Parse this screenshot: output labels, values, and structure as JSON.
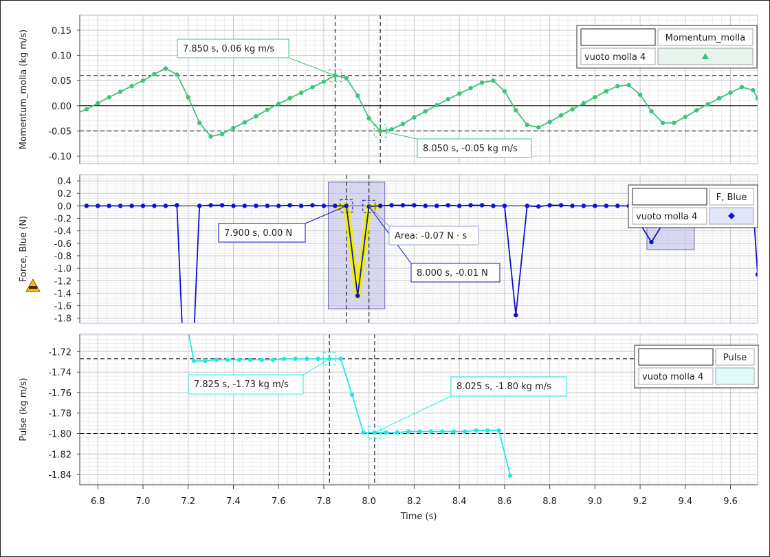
{
  "x_axis": {
    "label": "Time (s)",
    "range": [
      6.72,
      9.72
    ],
    "ticks": [
      "6.8",
      "7.0",
      "7.2",
      "7.4",
      "7.6",
      "7.8",
      "8.0",
      "8.2",
      "8.4",
      "8.6",
      "8.8",
      "9.0",
      "9.2",
      "9.4",
      "9.6"
    ],
    "tick_values": [
      6.8,
      7.0,
      7.2,
      7.4,
      7.6,
      7.8,
      8.0,
      8.2,
      8.4,
      8.6,
      8.8,
      9.0,
      9.2,
      9.4,
      9.6
    ]
  },
  "colors": {
    "momentum": "#3cc47c",
    "force": "#1010d0",
    "pulse": "#20e8e8",
    "highlight": "#f0f000",
    "selection_fill": "#b4b4e4",
    "warning": "#f0c000"
  },
  "chart_data": [
    {
      "type": "line",
      "ylabel": "Momentum_molla (kg m/s)",
      "ylim": [
        -0.115,
        0.18
      ],
      "yticks": [
        "0.15",
        "0.10",
        "0.05",
        "0.00",
        "-0.05",
        "-0.10"
      ],
      "ytick_values": [
        0.15,
        0.1,
        0.05,
        0.0,
        -0.05,
        -0.1
      ],
      "grid": true,
      "legend": {
        "placement": "top-right",
        "title_box": "",
        "series_label": "Momentum_molla",
        "run": "vuoto molla 4",
        "icon": "triangle-icon"
      },
      "series": [
        {
          "name": "Momentum_molla",
          "x": [
            6.7,
            6.75,
            6.8,
            6.85,
            6.9,
            6.95,
            7.0,
            7.05,
            7.1,
            7.15,
            7.2,
            7.25,
            7.3,
            7.35,
            7.4,
            7.45,
            7.5,
            7.55,
            7.6,
            7.65,
            7.7,
            7.75,
            7.8,
            7.85,
            7.9,
            7.95,
            8.0,
            8.05,
            8.1,
            8.15,
            8.2,
            8.25,
            8.3,
            8.35,
            8.4,
            8.45,
            8.5,
            8.55,
            8.6,
            8.65,
            8.7,
            8.75,
            8.8,
            8.85,
            8.9,
            8.95,
            9.0,
            9.05,
            9.1,
            9.15,
            9.2,
            9.25,
            9.3,
            9.35,
            9.4,
            9.45,
            9.5,
            9.55,
            9.6,
            9.65,
            9.7,
            9.72
          ],
          "y": [
            -0.016,
            -0.007,
            0.005,
            0.017,
            0.028,
            0.039,
            0.05,
            0.063,
            0.074,
            0.062,
            0.017,
            -0.034,
            -0.061,
            -0.056,
            -0.044,
            -0.033,
            -0.021,
            -0.008,
            0.004,
            0.015,
            0.026,
            0.037,
            0.048,
            0.06,
            0.055,
            0.02,
            -0.025,
            -0.05,
            -0.047,
            -0.036,
            -0.023,
            -0.011,
            0.001,
            0.013,
            0.024,
            0.035,
            0.046,
            0.05,
            0.029,
            -0.009,
            -0.038,
            -0.043,
            -0.032,
            -0.019,
            -0.007,
            0.005,
            0.017,
            0.029,
            0.039,
            0.041,
            0.022,
            -0.011,
            -0.034,
            -0.034,
            -0.022,
            -0.009,
            0.003,
            0.015,
            0.026,
            0.037,
            0.031,
            0.015
          ]
        }
      ],
      "cursors": [
        7.85,
        8.05
      ],
      "hlines": [
        0.06,
        -0.05
      ],
      "callouts": [
        {
          "text": "7.850 s, 0.06 kg m/s",
          "x": 7.85,
          "y": 0.06
        },
        {
          "text": "8.050 s, -0.05 kg m/s",
          "x": 8.05,
          "y": -0.05
        }
      ]
    },
    {
      "type": "line",
      "ylabel": "Force, Blue (N)",
      "ylim": [
        -1.88,
        0.5
      ],
      "yticks": [
        "0.4",
        "0.2",
        "0.0",
        "-0.2",
        "-0.4",
        "-0.6",
        "-0.8",
        "-1.0",
        "-1.2",
        "-1.4",
        "-1.6",
        "-1.8"
      ],
      "ytick_values": [
        0.4,
        0.2,
        0.0,
        -0.2,
        -0.4,
        -0.6,
        -0.8,
        -1.0,
        -1.2,
        -1.4,
        -1.6,
        -1.8
      ],
      "grid": true,
      "legend": {
        "placement": "top-right",
        "title_box": "",
        "series_label": "F, Blue",
        "run": "vuoto molla 4",
        "icon": "diamond-icon"
      },
      "series": [
        {
          "name": "F, Blue",
          "x": [
            6.75,
            6.8,
            6.85,
            6.9,
            6.95,
            7.0,
            7.05,
            7.1,
            7.15,
            7.18,
            7.22,
            7.25,
            7.3,
            7.35,
            7.4,
            7.45,
            7.5,
            7.55,
            7.6,
            7.65,
            7.7,
            7.75,
            7.8,
            7.85,
            7.9,
            7.95,
            8.0,
            8.05,
            8.1,
            8.15,
            8.2,
            8.25,
            8.3,
            8.35,
            8.4,
            8.45,
            8.5,
            8.55,
            8.6,
            8.65,
            8.7,
            8.75,
            8.8,
            8.85,
            8.9,
            8.95,
            9.0,
            9.05,
            9.1,
            9.15,
            9.25,
            9.35,
            9.4,
            9.45,
            9.5,
            9.55,
            9.6,
            9.65,
            9.7,
            9.72
          ],
          "y": [
            0.0,
            0.0,
            0.0,
            0.0,
            0.0,
            0.0,
            0.0,
            0.0,
            0.01,
            -2.5,
            -2.5,
            0.0,
            0.01,
            0.01,
            0.0,
            0.0,
            0.0,
            0.0,
            0.0,
            0.01,
            0.0,
            0.01,
            0.0,
            0.0,
            0.0,
            -1.44,
            -0.01,
            0.0,
            0.01,
            0.01,
            0.01,
            0.0,
            0.0,
            0.01,
            0.0,
            0.01,
            0.01,
            0.0,
            0.0,
            -1.75,
            0.0,
            -0.01,
            0.01,
            0.01,
            0.0,
            0.0,
            0.0,
            0.0,
            0.0,
            0.0,
            -0.58,
            0.0,
            0.0,
            0.0,
            0.0,
            0.0,
            0.0,
            0.0,
            0.0,
            -1.1
          ]
        }
      ],
      "highlight": {
        "x_from": 7.85,
        "x_to": 8.05
      },
      "selections": [
        {
          "x_from": 7.82,
          "x_to": 8.07,
          "y_from": 0.38,
          "y_to": -1.65
        },
        {
          "x_from": 9.23,
          "x_to": 9.44,
          "y_from": 0.1,
          "y_to": -0.7
        }
      ],
      "cursors": [
        7.9,
        8.0
      ],
      "callouts": [
        {
          "text": "7.900 s, 0.00 N",
          "x": 7.9,
          "y": 0.0
        },
        {
          "text": "8.000 s, -0.01 N",
          "x": 8.0,
          "y": -0.01
        },
        {
          "text": "Area: -0.07 N · s",
          "x": 8.0,
          "y": 0.0
        }
      ],
      "warning_icon": "warning-icon"
    },
    {
      "type": "line",
      "ylabel": "Pulse (kg m/s)",
      "ylim": [
        -1.85,
        -1.703
      ],
      "yticks": [
        "-1.72",
        "-1.74",
        "-1.76",
        "-1.78",
        "-1.80",
        "-1.82",
        "-1.84"
      ],
      "ytick_values": [
        -1.72,
        -1.74,
        -1.76,
        -1.78,
        -1.8,
        -1.82,
        -1.84
      ],
      "grid": true,
      "legend": {
        "placement": "top-right",
        "title_box": "",
        "series_label": "Pulse",
        "run": "vuoto molla 4",
        "icon": "bowtie-icon"
      },
      "series": [
        {
          "name": "Pulse",
          "x": [
            7.2,
            7.225,
            7.275,
            7.325,
            7.375,
            7.425,
            7.475,
            7.525,
            7.575,
            7.625,
            7.675,
            7.725,
            7.775,
            7.825,
            7.875,
            7.925,
            7.975,
            8.025,
            8.075,
            8.125,
            8.175,
            8.225,
            8.275,
            8.325,
            8.375,
            8.425,
            8.475,
            8.525,
            8.575,
            8.625
          ],
          "y": [
            -1.7,
            -1.729,
            -1.729,
            -1.728,
            -1.728,
            -1.728,
            -1.728,
            -1.728,
            -1.728,
            -1.727,
            -1.727,
            -1.727,
            -1.727,
            -1.727,
            -1.727,
            -1.762,
            -1.799,
            -1.799,
            -1.799,
            -1.799,
            -1.798,
            -1.798,
            -1.798,
            -1.798,
            -1.798,
            -1.798,
            -1.797,
            -1.797,
            -1.797,
            -1.841
          ]
        }
      ],
      "cursors": [
        7.825,
        8.025
      ],
      "hlines": [
        -1.727,
        -1.8
      ],
      "callouts": [
        {
          "text": "7.825 s, -1.73 kg m/s",
          "x": 7.825,
          "y": -1.727
        },
        {
          "text": "8.025 s, -1.80 kg m/s",
          "x": 8.025,
          "y": -1.799
        }
      ]
    }
  ]
}
